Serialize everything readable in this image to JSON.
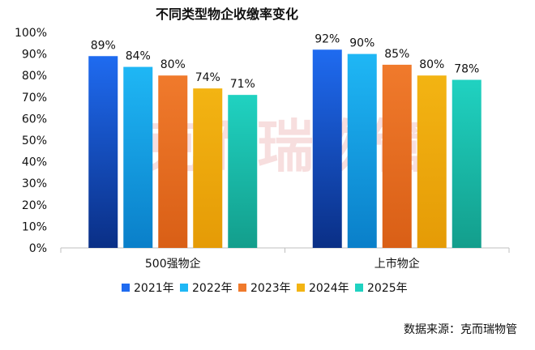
{
  "chart_data": {
    "type": "bar",
    "title": "不同类型物企收缴率变化",
    "categories": [
      "500强物企",
      "上市物企"
    ],
    "series": [
      {
        "name": "2021年",
        "values": [
          89,
          92
        ],
        "labels": [
          "89%",
          "92%"
        ],
        "color_top": "#1f6bf0",
        "color_bottom": "#0a2f86"
      },
      {
        "name": "2022年",
        "values": [
          84,
          90
        ],
        "labels": [
          "84%",
          "90%"
        ],
        "color_top": "#1fb7f5",
        "color_bottom": "#0a7fc9"
      },
      {
        "name": "2023年",
        "values": [
          80,
          85
        ],
        "labels": [
          "80%",
          "85%"
        ],
        "color_top": "#f07a2c",
        "color_bottom": "#d95f16"
      },
      {
        "name": "2024年",
        "values": [
          74,
          80
        ],
        "labels": [
          "74%",
          "80%"
        ],
        "color_top": "#f3b413",
        "color_bottom": "#e59b06"
      },
      {
        "name": "2025年",
        "values": [
          71,
          78
        ],
        "labels": [
          "71%",
          "78%"
        ],
        "color_top": "#20d2c1",
        "color_bottom": "#139e8c"
      }
    ],
    "yticks": [
      "0%",
      "10%",
      "20%",
      "30%",
      "40%",
      "50%",
      "60%",
      "70%",
      "80%",
      "90%",
      "100%"
    ],
    "ylim": [
      0,
      100
    ],
    "legend": "bottom",
    "grid": false
  },
  "watermark": "克而瑞物管",
  "source": "数据来源：克而瑞物管"
}
